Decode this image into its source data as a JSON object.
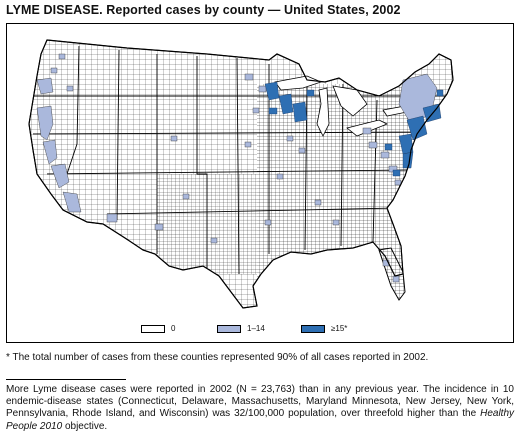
{
  "title": "LYME DISEASE. Reported cases by county — United States, 2002",
  "legend": [
    {
      "label": "0",
      "color": "#ffffff"
    },
    {
      "label": "1–14",
      "color": "#aab8dc"
    },
    {
      "label": "≥15*",
      "color": "#2e6fb3"
    }
  ],
  "footnote": "* The total number of cases from these counties represented 90% of all cases reported in 2002.",
  "body": {
    "text_before": "More Lyme disease cases were reported in 2002 (N = 23,763) than in any previous year. The incidence in 10 endemic-disease states (Connecticut, Delaware, Massachusetts, Maryland Minnesota, New Jersey, New York, Pennsylvania, Rhode Island, and Wisconsin) was 32/100,000 population, over threefold higher than the ",
    "italic": "Healthy People 2010",
    "text_after": " objective."
  },
  "colors": {
    "zero": "#ffffff",
    "low": "#aab8dc",
    "high": "#2e6fb3",
    "border": "#000000",
    "water": "#ffffff"
  }
}
